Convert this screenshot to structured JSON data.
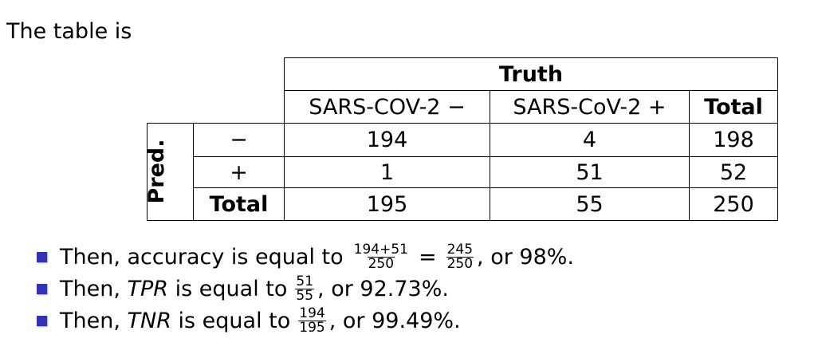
{
  "intro": "The table is",
  "table": {
    "truth_header": "Truth",
    "col_headers": [
      "SARS-COV-2 −",
      "SARS-CoV-2 +",
      "Total"
    ],
    "pred_label": "Pred.",
    "rows": [
      {
        "label": "−",
        "values": [
          "194",
          "4",
          "198"
        ]
      },
      {
        "label": "+",
        "values": [
          "1",
          "51",
          "52"
        ]
      },
      {
        "label": "Total",
        "values": [
          "195",
          "55",
          "250"
        ]
      }
    ]
  },
  "bullets": [
    {
      "prefix": "Then, accuracy is equal to",
      "frac1_num": "194+51",
      "frac1_den": "250",
      "equals": "=",
      "frac2_num": "245",
      "frac2_den": "250",
      "suffix": ", or 98%."
    },
    {
      "prefix": "Then, ",
      "term": "TPR",
      "middle": " is equal to",
      "frac_num": "51",
      "frac_den": "55",
      "suffix": ", or 92.73%."
    },
    {
      "prefix": "Then, ",
      "term": "TNR",
      "middle": " is equal to",
      "frac_num": "194",
      "frac_den": "195",
      "suffix": ", or 99.49%."
    }
  ],
  "colors": {
    "bullet": "#3333b3",
    "text": "#000000",
    "background": "#ffffff"
  }
}
